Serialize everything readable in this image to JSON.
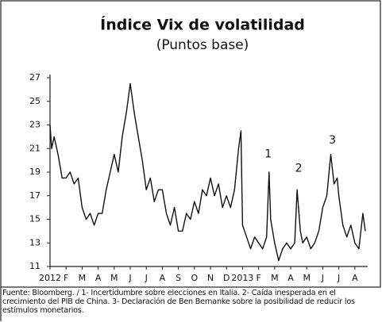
{
  "chart_data": {
    "type": "line",
    "title": "Índice  Vix de volatilidad",
    "subtitle": "(Puntos base)",
    "note": "Fuente: Bloomberg. / 1- Incertidumbre sobre elecciones en Italia. 2- Caída inesperada en el crecimiento del PIB de China. 3- Declaración de Ben Bernanke sobre la posibilidad de reducir los estímulos monetarios.",
    "color": "#111111",
    "xlim": [
      0,
      19.8
    ],
    "xticks": [
      {
        "value": 0,
        "label": "2012"
      },
      {
        "value": 1,
        "label": "F"
      },
      {
        "value": 2,
        "label": "M"
      },
      {
        "value": 3,
        "label": "A"
      },
      {
        "value": 4,
        "label": "M"
      },
      {
        "value": 5,
        "label": "J"
      },
      {
        "value": 6,
        "label": "J"
      },
      {
        "value": 7,
        "label": "A"
      },
      {
        "value": 8,
        "label": "S"
      },
      {
        "value": 9,
        "label": "O"
      },
      {
        "value": 10,
        "label": "N"
      },
      {
        "value": 11,
        "label": "D"
      },
      {
        "value": 12,
        "label": "2013"
      },
      {
        "value": 13,
        "label": "F"
      },
      {
        "value": 14,
        "label": "M"
      },
      {
        "value": 15,
        "label": "A"
      },
      {
        "value": 16,
        "label": "M"
      },
      {
        "value": 17,
        "label": "J"
      },
      {
        "value": 18,
        "label": "J"
      },
      {
        "value": 19,
        "label": "A"
      }
    ],
    "ylim": [
      11,
      27
    ],
    "yticks": [
      11,
      13,
      15,
      17,
      19,
      21,
      23,
      25,
      27
    ],
    "grid": false,
    "x": [
      0,
      0.1,
      0.25,
      0.5,
      0.75,
      1,
      1.25,
      1.5,
      1.75,
      2,
      2.25,
      2.5,
      2.75,
      3,
      3.25,
      3.5,
      3.75,
      4,
      4.25,
      4.5,
      4.75,
      5,
      5.25,
      5.5,
      5.75,
      6,
      6.25,
      6.5,
      6.75,
      7,
      7.25,
      7.5,
      7.75,
      8,
      8.25,
      8.5,
      8.75,
      9,
      9.25,
      9.5,
      9.75,
      10,
      10.25,
      10.5,
      10.75,
      11,
      11.25,
      11.5,
      11.75,
      11.9,
      12,
      12.25,
      12.5,
      12.75,
      13,
      13.25,
      13.5,
      13.65,
      13.75,
      14,
      14.25,
      14.5,
      14.75,
      15,
      15.25,
      15.4,
      15.6,
      15.75,
      16,
      16.25,
      16.5,
      16.75,
      17,
      17.25,
      17.5,
      17.7,
      17.9,
      18,
      18.25,
      18.5,
      18.75,
      19,
      19.25,
      19.5,
      19.65
    ],
    "values": [
      23,
      21,
      22,
      20.5,
      18.5,
      18.5,
      19,
      18,
      18.5,
      16,
      15,
      15.5,
      14.5,
      15.5,
      15.5,
      17.5,
      19,
      20.5,
      19,
      22,
      24,
      26.5,
      24,
      22,
      20,
      17.5,
      18.5,
      16.5,
      17.5,
      17.5,
      15.5,
      14.5,
      16,
      14,
      14,
      15.5,
      15,
      16.5,
      15.5,
      17.5,
      17,
      18.5,
      17,
      18,
      16,
      17,
      16,
      17.5,
      21,
      22.5,
      14.5,
      13.5,
      12.5,
      13.5,
      13,
      12.5,
      13.5,
      19,
      15,
      13,
      11.5,
      12.5,
      13,
      12.5,
      13,
      17.5,
      14,
      13,
      13.5,
      12.5,
      13,
      14,
      16,
      17,
      20.5,
      18,
      18.5,
      17,
      14.5,
      13.5,
      14.5,
      13,
      12.5,
      15.5,
      14
    ],
    "annotations": [
      {
        "text": "1",
        "x": 13.6,
        "y": 20.5
      },
      {
        "text": "2",
        "x": 15.5,
        "y": 19.3
      },
      {
        "text": "3",
        "x": 17.6,
        "y": 21.7
      }
    ]
  }
}
